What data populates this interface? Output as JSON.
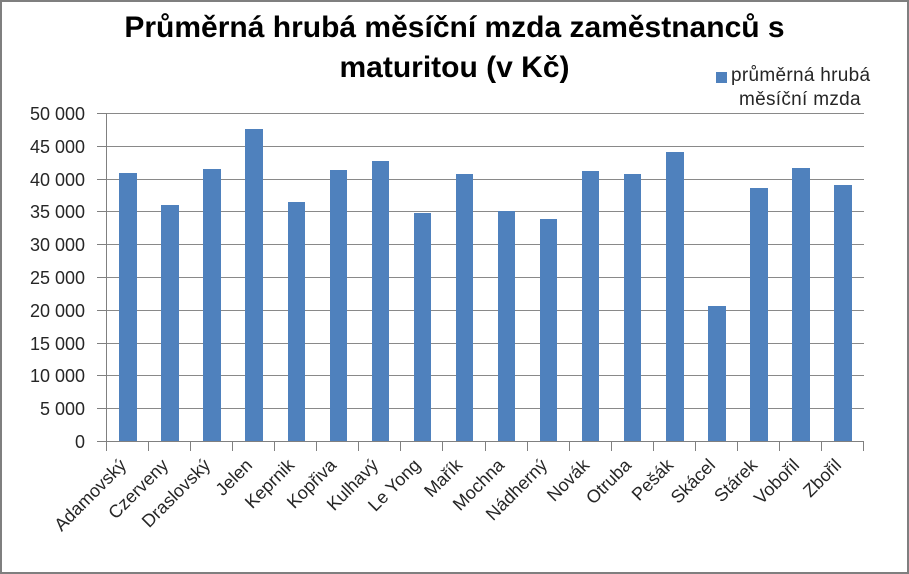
{
  "chart_data": {
    "type": "bar",
    "title": "Průměrná hrubá měsíční mzda zaměstnanců s maturitou (v Kč)",
    "legend": "průměrná hrubá měsíční mzda",
    "categories": [
      "Adamovský",
      "Czerveny",
      "Draslovský",
      "Jelen",
      "Keprnik",
      "Kopřiva",
      "Kulhavý",
      "Le Yong",
      "Mařík",
      "Mochna",
      "Nádherný",
      "Novák",
      "Otruba",
      "Pešák",
      "Skácel",
      "Stárek",
      "Vobořil",
      "Zbořil"
    ],
    "values": [
      40800,
      36000,
      41500,
      47500,
      36500,
      41300,
      42700,
      34800,
      40700,
      35000,
      33800,
      41100,
      40700,
      44000,
      20600,
      38600,
      41600,
      39100
    ],
    "xlabel": "",
    "ylabel": "",
    "ylim": [
      0,
      50000
    ],
    "ytick_step": 5000,
    "ytick_labels": [
      "0",
      "5 000",
      "10 000",
      "15 000",
      "20 000",
      "25 000",
      "30 000",
      "35 000",
      "40 000",
      "45 000",
      "50 000"
    ],
    "grid": true,
    "legend_position": "top-right",
    "colors": {
      "bar": "#4f81bd",
      "gridline": "#898989",
      "axis": "#808080",
      "text": "#262626",
      "border": "#7f7f7f"
    }
  }
}
